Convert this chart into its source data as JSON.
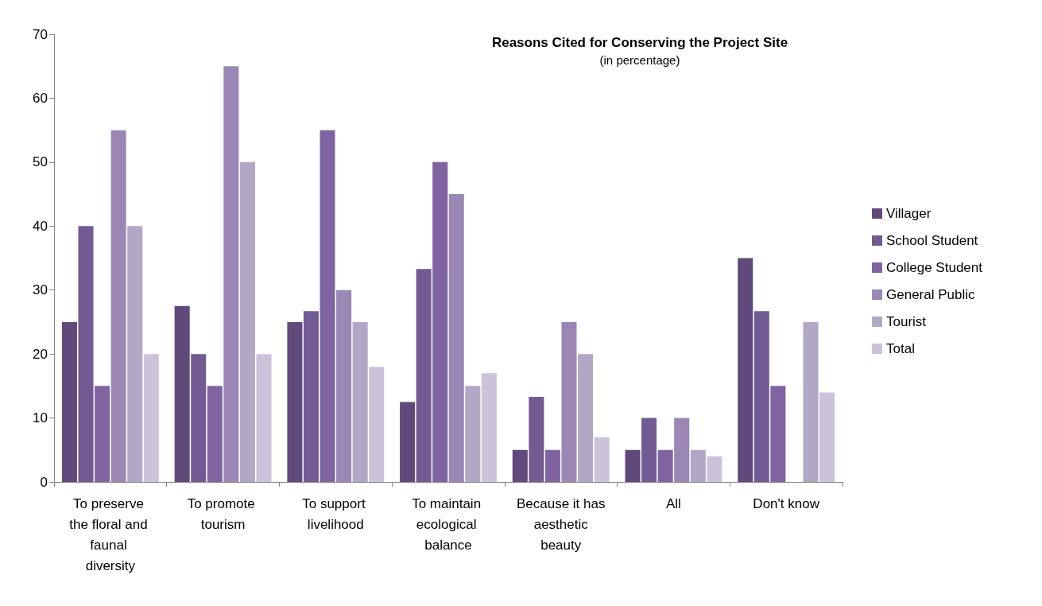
{
  "chart_data": {
    "type": "bar",
    "title": "Reasons Cited for Conserving the Project Site",
    "subtitle": "(in percentage)",
    "categories": [
      "To preserve the floral and faunal diversity",
      "To promote tourism",
      "To support livelihood",
      "To maintain ecological balance",
      "Because it has aesthetic beauty",
      "All",
      "Don't know"
    ],
    "series": [
      {
        "name": "Villager",
        "color": "#604a7b",
        "values": [
          25,
          27.5,
          25,
          12.5,
          5,
          5,
          35
        ]
      },
      {
        "name": "School Student",
        "color": "#725a92",
        "values": [
          40,
          20,
          26.7,
          33.3,
          13.3,
          10,
          26.7
        ]
      },
      {
        "name": "College Student",
        "color": "#8064a2",
        "values": [
          15,
          15,
          55,
          50,
          5,
          5,
          15
        ]
      },
      {
        "name": "General Public",
        "color": "#9a87b4",
        "values": [
          55,
          65,
          30,
          45,
          25,
          10,
          null
        ]
      },
      {
        "name": "Tourist",
        "color": "#b3a7c6",
        "values": [
          40,
          50,
          25,
          15,
          20,
          5,
          25
        ]
      },
      {
        "name": "Total",
        "color": "#ccc3da",
        "values": [
          20,
          20,
          18,
          17,
          7,
          4,
          14
        ]
      }
    ],
    "ylim": [
      0,
      70
    ],
    "yticks": [
      0,
      10,
      20,
      30,
      40,
      50,
      60,
      70
    ],
    "grid": false,
    "legend": "right"
  }
}
